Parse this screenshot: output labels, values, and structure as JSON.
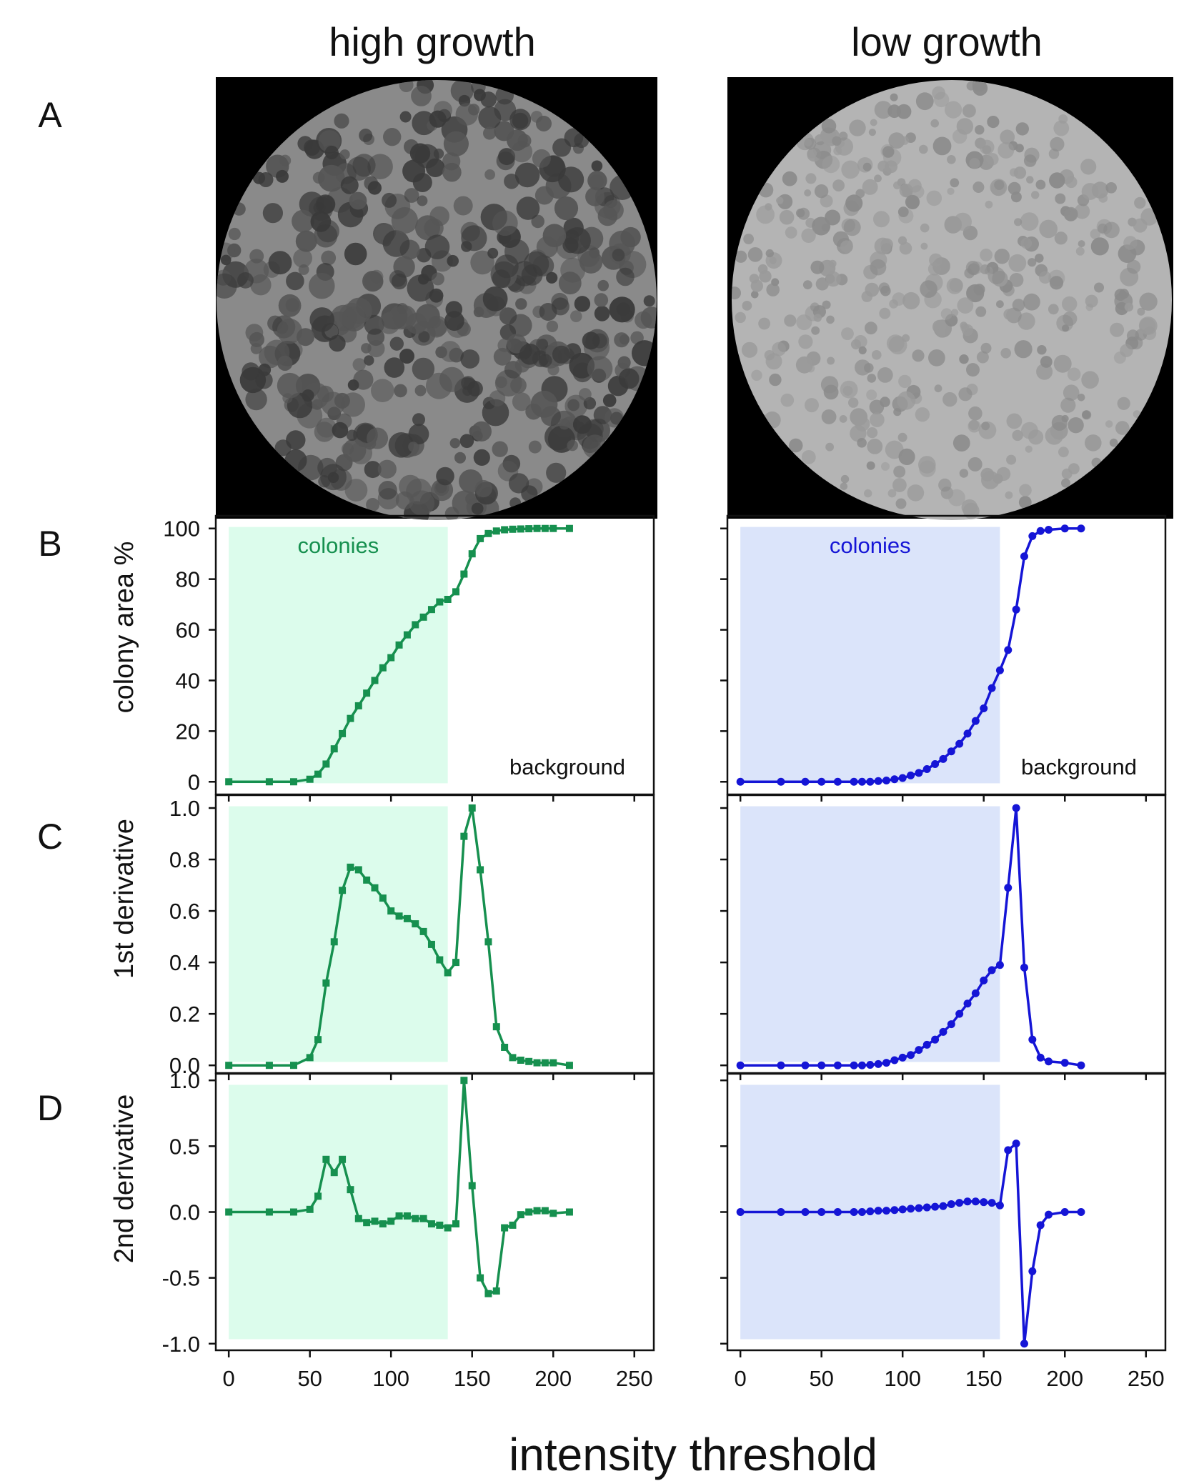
{
  "columns": [
    {
      "title": "high growth",
      "color": "#16904f",
      "shade": "#dcfcec",
      "marker": "square",
      "image_tone": "dark"
    },
    {
      "title": "low growth",
      "color": "#1515d6",
      "shade": "#dbe4fa",
      "marker": "circle",
      "image_tone": "light"
    }
  ],
  "panel_letters": [
    "A",
    "B",
    "C",
    "D"
  ],
  "xlabel": "intensity threshold",
  "annotations": {
    "region": "colonies",
    "background": "background"
  },
  "chart_data": [
    {
      "type": "line",
      "panel": "B",
      "column": "high growth",
      "ylabel": "colony area  %",
      "xlim": [
        -8,
        262
      ],
      "ylim": [
        -5,
        105
      ],
      "yticks": [
        "0",
        "20",
        "40",
        "60",
        "80",
        "100"
      ],
      "ytick_values": [
        0,
        20,
        40,
        60,
        80,
        100
      ],
      "xticks": [
        0,
        50,
        100,
        150,
        200,
        250
      ],
      "shaded_region": [
        0,
        135
      ],
      "series": [
        {
          "x": [
            0,
            25,
            40,
            50,
            55,
            60,
            65,
            70,
            75,
            80,
            85,
            90,
            95,
            100,
            105,
            110,
            115,
            120,
            125,
            130,
            135,
            140,
            145,
            150,
            155,
            160,
            165,
            170,
            175,
            180,
            185,
            190,
            195,
            200,
            210
          ],
          "y": [
            0,
            0,
            0,
            1,
            3,
            7,
            13,
            19,
            25,
            30,
            35,
            40,
            45,
            49,
            54,
            58,
            62,
            65,
            68,
            71,
            72,
            75,
            82,
            90,
            96,
            98,
            99,
            99.5,
            99.7,
            99.8,
            99.9,
            100,
            100,
            100,
            100
          ]
        }
      ]
    },
    {
      "type": "line",
      "panel": "B",
      "column": "low growth",
      "ylabel": "",
      "xlim": [
        -8,
        262
      ],
      "ylim": [
        -5,
        105
      ],
      "yticks": [],
      "ytick_values": [
        0,
        20,
        40,
        60,
        80,
        100
      ],
      "xticks": [
        0,
        50,
        100,
        150,
        200,
        250
      ],
      "shaded_region": [
        0,
        160
      ],
      "series": [
        {
          "x": [
            0,
            25,
            40,
            50,
            60,
            70,
            75,
            80,
            85,
            90,
            95,
            100,
            105,
            110,
            115,
            120,
            125,
            130,
            135,
            140,
            145,
            150,
            155,
            160,
            165,
            170,
            175,
            180,
            185,
            190,
            200,
            210
          ],
          "y": [
            0,
            0,
            0,
            0,
            0,
            0,
            0,
            0,
            0.3,
            0.5,
            1,
            1.5,
            2.5,
            3.5,
            5,
            7,
            9,
            12,
            15,
            19,
            24,
            29,
            37,
            44,
            52,
            68,
            89,
            97,
            99,
            99.5,
            100,
            100
          ]
        }
      ]
    },
    {
      "type": "line",
      "panel": "C",
      "column": "high growth",
      "ylabel": "1st derivative",
      "xlim": [
        -8,
        262
      ],
      "ylim": [
        -0.03,
        1.05
      ],
      "yticks": [
        "0.0",
        "0.2",
        "0.4",
        "0.6",
        "0.8",
        "1.0"
      ],
      "ytick_values": [
        0,
        0.2,
        0.4,
        0.6,
        0.8,
        1.0
      ],
      "xticks": [
        0,
        50,
        100,
        150,
        200,
        250
      ],
      "shaded_region": [
        0,
        135
      ],
      "series": [
        {
          "x": [
            0,
            25,
            40,
            50,
            55,
            60,
            65,
            70,
            75,
            80,
            85,
            90,
            95,
            100,
            105,
            110,
            115,
            120,
            125,
            130,
            135,
            140,
            145,
            150,
            155,
            160,
            165,
            170,
            175,
            180,
            185,
            190,
            195,
            200,
            210
          ],
          "y": [
            0,
            0,
            0,
            0.03,
            0.1,
            0.32,
            0.48,
            0.68,
            0.77,
            0.76,
            0.72,
            0.69,
            0.65,
            0.6,
            0.58,
            0.57,
            0.55,
            0.52,
            0.47,
            0.41,
            0.36,
            0.4,
            0.89,
            1.0,
            0.76,
            0.48,
            0.15,
            0.07,
            0.03,
            0.02,
            0.015,
            0.01,
            0.01,
            0.01,
            0
          ]
        }
      ]
    },
    {
      "type": "line",
      "panel": "C",
      "column": "low growth",
      "ylabel": "",
      "xlim": [
        -8,
        262
      ],
      "ylim": [
        -0.03,
        1.05
      ],
      "yticks": [],
      "ytick_values": [
        0,
        0.2,
        0.4,
        0.6,
        0.8,
        1.0
      ],
      "xticks": [
        0,
        50,
        100,
        150,
        200,
        250
      ],
      "shaded_region": [
        0,
        160
      ],
      "series": [
        {
          "x": [
            0,
            25,
            40,
            50,
            60,
            70,
            75,
            80,
            85,
            90,
            95,
            100,
            105,
            110,
            115,
            120,
            125,
            130,
            135,
            140,
            145,
            150,
            155,
            160,
            165,
            170,
            175,
            180,
            185,
            190,
            200,
            210
          ],
          "y": [
            0,
            0,
            0,
            0,
            0,
            0,
            0,
            0.002,
            0.005,
            0.01,
            0.02,
            0.03,
            0.04,
            0.06,
            0.08,
            0.1,
            0.13,
            0.16,
            0.2,
            0.24,
            0.28,
            0.33,
            0.37,
            0.39,
            0.69,
            1.0,
            0.38,
            0.1,
            0.03,
            0.015,
            0.01,
            0
          ]
        }
      ]
    },
    {
      "type": "line",
      "panel": "D",
      "column": "high growth",
      "ylabel": "2nd derivative",
      "xlim": [
        -8,
        262
      ],
      "ylim": [
        -1.05,
        1.05
      ],
      "yticks": [
        "-1.0",
        "-0.5",
        "0.0",
        "0.5",
        "1.0"
      ],
      "ytick_values": [
        -1,
        -0.5,
        0,
        0.5,
        1
      ],
      "xticks": [
        0,
        50,
        100,
        150,
        200,
        250
      ],
      "shaded_region": [
        0,
        135
      ],
      "series": [
        {
          "x": [
            0,
            25,
            40,
            50,
            55,
            60,
            65,
            70,
            75,
            80,
            85,
            90,
            95,
            100,
            105,
            110,
            115,
            120,
            125,
            130,
            135,
            140,
            145,
            150,
            155,
            160,
            165,
            170,
            175,
            180,
            185,
            190,
            195,
            200,
            210
          ],
          "y": [
            0,
            0,
            0,
            0.02,
            0.12,
            0.4,
            0.3,
            0.4,
            0.17,
            -0.05,
            -0.08,
            -0.07,
            -0.09,
            -0.07,
            -0.03,
            -0.03,
            -0.05,
            -0.05,
            -0.09,
            -0.1,
            -0.12,
            -0.09,
            1.0,
            0.2,
            -0.5,
            -0.62,
            -0.6,
            -0.12,
            -0.1,
            -0.02,
            0,
            0.01,
            0.01,
            -0.01,
            0
          ]
        }
      ]
    },
    {
      "type": "line",
      "panel": "D",
      "column": "low growth",
      "ylabel": "",
      "xlim": [
        -8,
        262
      ],
      "ylim": [
        -1.05,
        1.05
      ],
      "yticks": [],
      "ytick_values": [
        -1,
        -0.5,
        0,
        0.5,
        1
      ],
      "xticks": [
        0,
        50,
        100,
        150,
        200,
        250
      ],
      "shaded_region": [
        0,
        160
      ],
      "series": [
        {
          "x": [
            0,
            25,
            40,
            50,
            60,
            70,
            75,
            80,
            85,
            90,
            95,
            100,
            105,
            110,
            115,
            120,
            125,
            130,
            135,
            140,
            145,
            150,
            155,
            160,
            165,
            170,
            175,
            180,
            185,
            190,
            200,
            210
          ],
          "y": [
            0,
            0,
            0,
            0,
            0,
            0,
            0,
            0.005,
            0.01,
            0.01,
            0.015,
            0.02,
            0.025,
            0.03,
            0.035,
            0.04,
            0.045,
            0.06,
            0.07,
            0.08,
            0.08,
            0.075,
            0.07,
            0.05,
            0.47,
            0.52,
            -1.0,
            -0.45,
            -0.1,
            -0.02,
            0,
            0
          ]
        }
      ]
    }
  ]
}
